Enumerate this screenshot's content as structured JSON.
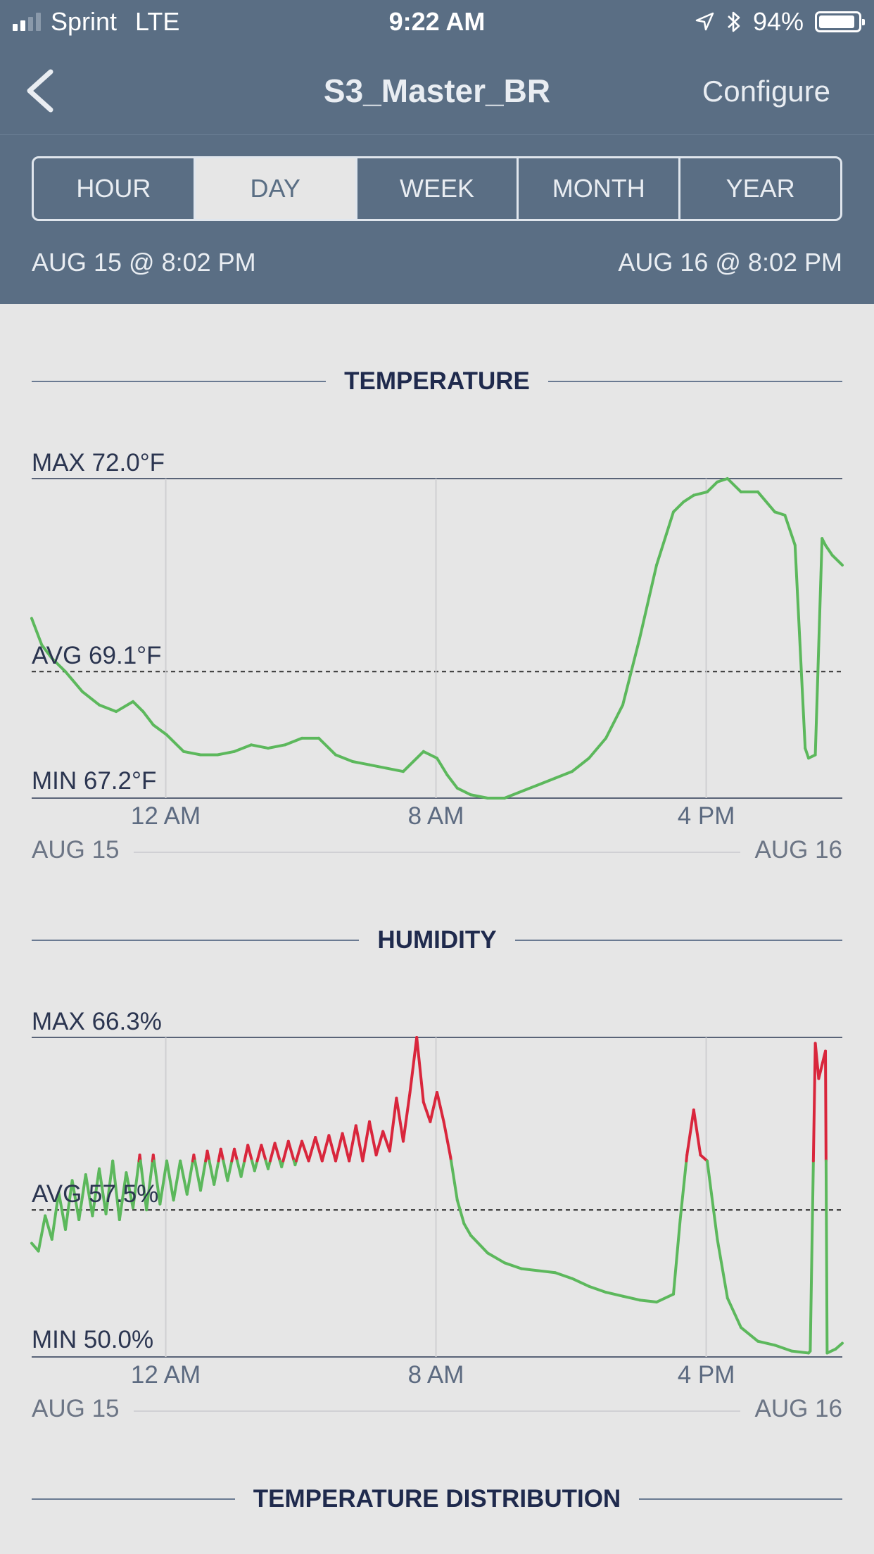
{
  "status_bar": {
    "carrier": "Sprint",
    "network": "LTE",
    "time": "9:22 AM",
    "battery": "94%",
    "icons": [
      "location-arrow-icon",
      "bluetooth-icon",
      "battery-icon"
    ]
  },
  "nav": {
    "title": "S3_Master_BR",
    "configure": "Configure",
    "back_icon": "chevron-left-icon"
  },
  "segments": [
    "HOUR",
    "DAY",
    "WEEK",
    "MONTH",
    "YEAR"
  ],
  "selected_segment": "DAY",
  "range": {
    "start": "AUG 15 @ 8:02 PM",
    "end": "AUG 16 @ 8:02 PM"
  },
  "colors": {
    "header": "#5a6e84",
    "line_ok": "#5cb85c",
    "line_alert": "#d9263c",
    "heading": "#1f2a4d"
  },
  "temperature": {
    "heading": "TEMPERATURE",
    "max": "MAX 72.0°F",
    "avg": "AVG 69.1°F",
    "min": "MIN 67.2°F",
    "ticks": [
      "12 AM",
      "8 AM",
      "4 PM"
    ],
    "date_left": "AUG 15",
    "date_right": "AUG 16"
  },
  "humidity": {
    "heading": "HUMIDITY",
    "max": "MAX 66.3%",
    "avg": "AVG 57.5%",
    "min": "MIN 50.0%",
    "ticks": [
      "12 AM",
      "8 AM",
      "4 PM"
    ],
    "date_left": "AUG 15",
    "date_right": "AUG 16"
  },
  "distribution": {
    "heading": "TEMPERATURE DISTRIBUTION"
  },
  "chart_data": [
    {
      "type": "line",
      "title": "TEMPERATURE",
      "unit": "°F",
      "ylim": [
        67.2,
        72.0
      ],
      "avg": 69.1,
      "x_unit": "hours since AUG 15 8:02 PM",
      "xlim": [
        0,
        24
      ],
      "x_ticks": [
        {
          "label": "12 AM",
          "x": 3.97
        },
        {
          "label": "8 AM",
          "x": 11.97
        },
        {
          "label": "4 PM",
          "x": 19.97
        }
      ],
      "grid": true,
      "x": [
        0,
        0.3,
        0.6,
        1.0,
        1.5,
        2.0,
        2.5,
        3.0,
        3.3,
        3.6,
        4.0,
        4.5,
        5.0,
        5.5,
        6.0,
        6.5,
        7.0,
        7.5,
        8.0,
        8.5,
        9.0,
        9.5,
        10.0,
        10.5,
        11.0,
        11.3,
        11.6,
        12.0,
        12.3,
        12.6,
        13.0,
        13.5,
        14.0,
        14.5,
        15.0,
        15.5,
        16.0,
        16.5,
        17.0,
        17.5,
        18.0,
        18.5,
        19.0,
        19.3,
        19.6,
        20.0,
        20.3,
        20.6,
        21.0,
        21.5,
        22.0,
        22.3,
        22.6,
        22.9,
        23.0,
        23.2,
        23.4,
        23.5,
        23.7,
        24.0
      ],
      "values": [
        69.9,
        69.5,
        69.3,
        69.1,
        68.8,
        68.6,
        68.5,
        68.65,
        68.5,
        68.3,
        68.15,
        67.9,
        67.85,
        67.85,
        67.9,
        68.0,
        67.95,
        68.0,
        68.1,
        68.1,
        67.85,
        67.75,
        67.7,
        67.65,
        67.6,
        67.75,
        67.9,
        67.8,
        67.55,
        67.35,
        67.25,
        67.2,
        67.2,
        67.3,
        67.4,
        67.5,
        67.6,
        67.8,
        68.1,
        68.6,
        69.6,
        70.7,
        71.5,
        71.65,
        71.75,
        71.8,
        71.95,
        72.0,
        71.8,
        71.8,
        71.5,
        71.45,
        71.0,
        67.95,
        67.8,
        67.85,
        71.1,
        71.0,
        70.85,
        70.7
      ]
    },
    {
      "type": "line",
      "title": "HUMIDITY",
      "unit": "%",
      "ylim": [
        50.0,
        66.3
      ],
      "avg": 57.5,
      "alert_threshold": 60.0,
      "x_unit": "hours since AUG 15 8:02 PM",
      "xlim": [
        0,
        24
      ],
      "x_ticks": [
        {
          "label": "12 AM",
          "x": 3.97
        },
        {
          "label": "8 AM",
          "x": 11.97
        },
        {
          "label": "4 PM",
          "x": 19.97
        }
      ],
      "grid": true,
      "x": [
        0,
        0.2,
        0.4,
        0.6,
        0.8,
        1.0,
        1.2,
        1.4,
        1.6,
        1.8,
        2.0,
        2.2,
        2.4,
        2.6,
        2.8,
        3.0,
        3.2,
        3.4,
        3.6,
        3.8,
        4.0,
        4.2,
        4.4,
        4.6,
        4.8,
        5.0,
        5.2,
        5.4,
        5.6,
        5.8,
        6.0,
        6.2,
        6.4,
        6.6,
        6.8,
        7.0,
        7.2,
        7.4,
        7.6,
        7.8,
        8.0,
        8.2,
        8.4,
        8.6,
        8.8,
        9.0,
        9.2,
        9.4,
        9.6,
        9.8,
        10.0,
        10.2,
        10.4,
        10.6,
        10.8,
        11.0,
        11.2,
        11.4,
        11.6,
        11.8,
        12.0,
        12.2,
        12.4,
        12.6,
        12.8,
        13.0,
        13.5,
        14.0,
        14.5,
        15.0,
        15.5,
        16.0,
        16.5,
        17.0,
        17.5,
        18.0,
        18.5,
        19.0,
        19.2,
        19.4,
        19.6,
        19.8,
        20.0,
        20.3,
        20.6,
        21.0,
        21.5,
        22.0,
        22.5,
        23.0,
        23.05,
        23.2,
        23.3,
        23.5,
        23.55,
        23.8,
        24.0
      ],
      "values": [
        55.8,
        55.4,
        57.2,
        56.0,
        58.4,
        56.5,
        59.0,
        57.0,
        59.3,
        57.2,
        59.6,
        57.3,
        60.0,
        57.0,
        59.4,
        57.6,
        60.3,
        57.5,
        60.3,
        57.8,
        60.0,
        58.0,
        60.0,
        58.3,
        60.3,
        58.5,
        60.5,
        58.8,
        60.6,
        59.0,
        60.6,
        59.2,
        60.8,
        59.5,
        60.8,
        59.6,
        60.9,
        59.7,
        61.0,
        59.8,
        61.0,
        60.0,
        61.2,
        60.0,
        61.3,
        60.0,
        61.4,
        60.0,
        61.8,
        60.0,
        62.0,
        60.3,
        61.5,
        60.5,
        63.2,
        61.0,
        63.5,
        66.3,
        63.0,
        62.0,
        63.5,
        62.0,
        60.2,
        58.0,
        56.8,
        56.2,
        55.3,
        54.8,
        54.5,
        54.4,
        54.3,
        54.0,
        53.6,
        53.3,
        53.1,
        52.9,
        52.8,
        53.2,
        57.0,
        60.3,
        62.6,
        60.3,
        60.0,
        56.0,
        53.0,
        51.5,
        50.8,
        50.6,
        50.3,
        50.2,
        50.3,
        66.0,
        64.2,
        65.6,
        50.2,
        50.4,
        50.7
      ]
    }
  ]
}
